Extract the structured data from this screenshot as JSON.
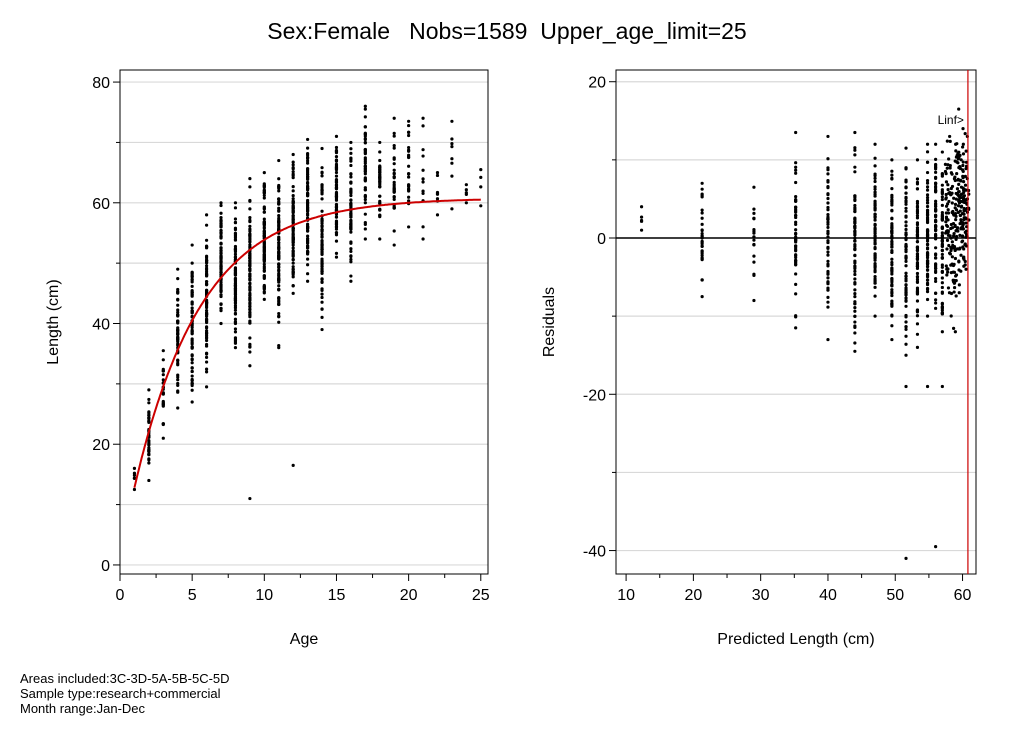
{
  "title": "Sex:Female   Nobs=1589  Upper_age_limit=25",
  "footer": {
    "areas": "Areas included:3C-3D-5A-5B-5C-5D",
    "sample_type": "Sample type:research+commercial",
    "month_range": "Month range:Jan-Dec"
  },
  "colors": {
    "points": "#000000",
    "fit_line": "#cc0000",
    "grid": "#d9d9d9",
    "linf_line": "#cc0000"
  },
  "chart_data": [
    {
      "type": "scatter",
      "name": "length-at-age",
      "xlabel": "Age",
      "ylabel": "Length (cm)",
      "xlim": [
        0,
        25.5
      ],
      "ylim": [
        -1.5,
        82
      ],
      "xticks": [
        0,
        5,
        10,
        15,
        20,
        25
      ],
      "yticks": [
        0,
        20,
        40,
        60,
        80
      ],
      "grid": "horizontal",
      "fit": {
        "type": "von-bertalanffy",
        "linf": 60.8,
        "k": 0.215,
        "t0": -0.1,
        "x_range": [
          1,
          25
        ]
      },
      "points_by_age": [
        {
          "age": 1,
          "min": 12.5,
          "max": 16,
          "n": 6
        },
        {
          "age": 2,
          "min": 14,
          "max": 29,
          "n": 40,
          "extra": []
        },
        {
          "age": 3,
          "min": 21,
          "max": 35.5,
          "n": 25
        },
        {
          "age": 4,
          "min": 26,
          "max": 49,
          "n": 55
        },
        {
          "age": 5,
          "min": 27,
          "max": 53,
          "n": 70
        },
        {
          "age": 6,
          "min": 29.5,
          "max": 58,
          "n": 80
        },
        {
          "age": 7,
          "min": 40,
          "max": 60,
          "n": 90
        },
        {
          "age": 8,
          "min": 36,
          "max": 60,
          "n": 95
        },
        {
          "age": 9,
          "min": 33,
          "max": 64,
          "n": 95,
          "extra": [
            11
          ]
        },
        {
          "age": 10,
          "min": 44,
          "max": 65,
          "n": 95
        },
        {
          "age": 11,
          "min": 36,
          "max": 67,
          "n": 95
        },
        {
          "age": 12,
          "min": 45,
          "max": 68,
          "n": 90,
          "extra": [
            16.5
          ]
        },
        {
          "age": 13,
          "min": 47,
          "max": 70.5,
          "n": 90
        },
        {
          "age": 14,
          "min": 39,
          "max": 69,
          "n": 80
        },
        {
          "age": 15,
          "min": 51,
          "max": 71,
          "n": 70
        },
        {
          "age": 16,
          "min": 47,
          "max": 70,
          "n": 65
        },
        {
          "age": 17,
          "min": 54,
          "max": 76,
          "n": 50
        },
        {
          "age": 18,
          "min": 54,
          "max": 70,
          "n": 40
        },
        {
          "age": 19,
          "min": 53,
          "max": 74,
          "n": 35
        },
        {
          "age": 20,
          "min": 56,
          "max": 73.5,
          "n": 25
        },
        {
          "age": 21,
          "min": 54,
          "max": 74,
          "n": 12
        },
        {
          "age": 22,
          "min": 58,
          "max": 65,
          "n": 8
        },
        {
          "age": 23,
          "min": 59,
          "max": 73.5,
          "n": 8
        },
        {
          "age": 24,
          "min": 60,
          "max": 63,
          "n": 5
        },
        {
          "age": 25,
          "min": 59.5,
          "max": 65.5,
          "n": 4
        }
      ]
    },
    {
      "type": "scatter",
      "name": "residuals",
      "xlabel": "Predicted Length (cm)",
      "ylabel": "Residuals",
      "xlim": [
        8.5,
        62
      ],
      "ylim": [
        -43,
        21.5
      ],
      "xticks": [
        10,
        20,
        30,
        40,
        50,
        60
      ],
      "yticks": [
        -40,
        -20,
        0,
        20
      ],
      "grid": "horizontal",
      "zero_line": true,
      "linf_marker": {
        "x": 60.8,
        "label": "Linf>"
      },
      "columns": [
        {
          "x": 12.3,
          "min": 1,
          "max": 4,
          "n": 5
        },
        {
          "x": 21.3,
          "min": -7.5,
          "max": 7,
          "n": 30
        },
        {
          "x": 29.0,
          "min": -8,
          "max": 6.5,
          "n": 20
        },
        {
          "x": 35.2,
          "min": -11.5,
          "max": 13.5,
          "n": 50
        },
        {
          "x": 40.0,
          "min": -13,
          "max": 13,
          "n": 55,
          "extra": []
        },
        {
          "x": 44.0,
          "min": -14.5,
          "max": 13.5,
          "n": 70
        },
        {
          "x": 47.0,
          "min": -10,
          "max": 12,
          "n": 70
        },
        {
          "x": 49.5,
          "min": -13,
          "max": 10,
          "n": 75
        },
        {
          "x": 51.6,
          "min": -15,
          "max": 11.5,
          "n": 80,
          "extra": [
            -19,
            -41
          ]
        },
        {
          "x": 53.3,
          "min": -14,
          "max": 10,
          "n": 75
        },
        {
          "x": 54.8,
          "min": -10,
          "max": 12,
          "n": 80,
          "extra": [
            -19
          ]
        },
        {
          "x": 56.0,
          "min": -9,
          "max": 12,
          "n": 70,
          "extra": [
            -39.5
          ]
        },
        {
          "x": 57.0,
          "min": -12,
          "max": 11,
          "n": 65,
          "extra": [
            -19
          ]
        },
        {
          "x": 57.9,
          "min": -7,
          "max": 13,
          "n": 60
        },
        {
          "x": 58.7,
          "min": -12,
          "max": 12,
          "n": 55
        },
        {
          "x": 59.3,
          "min": -6,
          "max": 16.5,
          "n": 50
        },
        {
          "x": 59.8,
          "min": -7,
          "max": 12,
          "n": 45
        },
        {
          "x": 60.2,
          "min": -4,
          "max": 14,
          "n": 40
        },
        {
          "x": 60.5,
          "min": -3,
          "max": 13,
          "n": 30
        }
      ]
    }
  ]
}
